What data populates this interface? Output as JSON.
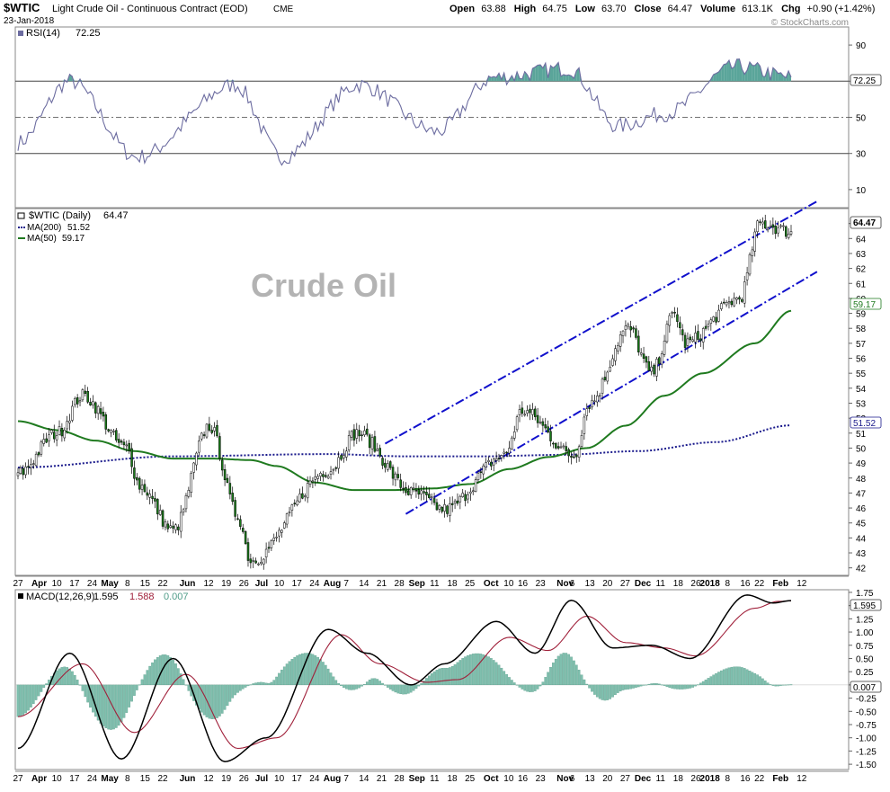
{
  "header": {
    "symbol": "$WTIC",
    "description": "Light Crude Oil - Continuous Contract (EOD)",
    "exchange": "CME",
    "date": "23-Jan-2018",
    "open_label": "Open",
    "open": "63.88",
    "high_label": "High",
    "high": "64.75",
    "low_label": "Low",
    "low": "63.70",
    "close_label": "Close",
    "close": "64.47",
    "volume_label": "Volume",
    "volume": "613.1K",
    "chg_label": "Chg",
    "chg": "+0.90 (+1.42%)",
    "watermark": "© StockCharts.com"
  },
  "colors": {
    "up_candle": "#ffffff",
    "down_candle": "#1a7a1a",
    "ma50": "#1f7a1f",
    "ma200": "#1a1a8c",
    "channel": "#1010cc",
    "rsi_line": "#6c6ca0",
    "rsi_fill": "#5aa59a",
    "macd_line": "#000000",
    "signal_line": "#a0203a",
    "hist_fill": "#7fbfae"
  },
  "chart_data": [
    {
      "type": "line",
      "panel": "rsi",
      "title": "RSI(14)",
      "last_value": "72.25",
      "ylim": [
        0,
        100
      ],
      "yticks": [
        "90",
        "70",
        "50",
        "30",
        "10"
      ],
      "reference_lines": [
        70,
        50,
        30
      ],
      "key_points": {
        "x": [
          0,
          20,
          46,
          84,
          102,
          132,
          162,
          184,
          213,
          232,
          250,
          278,
          299
        ],
        "y": [
          36,
          70,
          28,
          68,
          28,
          68,
          42,
          72,
          77,
          45,
          52,
          78,
          72.25
        ]
      }
    },
    {
      "type": "candlestick",
      "panel": "price",
      "title": "$WTIC (Daily)",
      "last_value": "64.47",
      "series": [
        {
          "name": "MA(200)",
          "value": "51.52"
        },
        {
          "name": "MA(50)",
          "value": "59.17"
        }
      ],
      "annotation": "Crude Oil",
      "ylim": [
        41.5,
        66
      ],
      "yticks": [
        "42",
        "43",
        "44",
        "45",
        "46",
        "47",
        "48",
        "49",
        "50",
        "51",
        "52",
        "53",
        "54",
        "55",
        "56",
        "57",
        "58",
        "59",
        "60",
        "61",
        "62",
        "63",
        "64",
        "65"
      ],
      "price_key_points": {
        "x": [
          0,
          15,
          25,
          42,
          47,
          60,
          74,
          85,
          90,
          120,
          131,
          153,
          165,
          188,
          195,
          215,
          221,
          236,
          245,
          254,
          258,
          279,
          287,
          299
        ],
        "y": [
          48.3,
          51,
          53.5,
          50,
          47.5,
          44.5,
          51.5,
          45.5,
          42.5,
          48.5,
          51,
          47,
          45.9,
          49.5,
          52.5,
          49.5,
          53,
          58,
          55,
          59,
          57,
          60,
          65,
          64.47
        ]
      },
      "ma50_key_points": {
        "x": [
          0,
          15,
          30,
          45,
          60,
          75,
          90,
          100,
          115,
          130,
          145,
          160,
          175,
          190,
          205,
          220,
          235,
          250,
          265,
          285,
          299
        ],
        "y": [
          51.8,
          51.2,
          50.5,
          49.8,
          49.3,
          49.3,
          49.2,
          48.8,
          47.7,
          47.2,
          47.2,
          47.3,
          47.6,
          48.6,
          49.4,
          50,
          51.5,
          53.5,
          55,
          57,
          59.17
        ]
      },
      "ma200_key_points": {
        "x": [
          0,
          60,
          120,
          150,
          180,
          210,
          240,
          270,
          299
        ],
        "y": [
          48.7,
          49.45,
          49.6,
          49.45,
          49.45,
          49.55,
          49.8,
          50.4,
          51.52
        ]
      },
      "channel_upper": {
        "x": [
          142,
          300
        ],
        "y": [
          50.3,
          66
        ]
      },
      "channel_lower": {
        "x": [
          150,
          300
        ],
        "y": [
          45.6,
          61.3
        ]
      }
    },
    {
      "type": "line",
      "panel": "macd",
      "title": "MACD(12,26,9)",
      "values": [
        "1.595",
        "1.588",
        "0.007"
      ],
      "series": [
        {
          "name": "MACD",
          "value": "1.595"
        },
        {
          "name": "Signal",
          "value": "1.588"
        },
        {
          "name": "Histogram",
          "value": "0.007"
        }
      ],
      "ylim": [
        -1.6,
        1.8
      ],
      "yticks": [
        "1.75",
        "1.50",
        "1.25",
        "1.00",
        "0.75",
        "0.50",
        "0.25",
        "0.00",
        "-0.25",
        "-0.50",
        "-0.75",
        "-1.00",
        "-1.25",
        "-1.50"
      ],
      "macd_key_points": {
        "x": [
          0,
          20,
          40,
          60,
          80,
          96,
          120,
          135,
          152,
          165,
          185,
          200,
          214,
          230,
          245,
          260,
          282,
          292,
          299
        ],
        "y": [
          -1.2,
          0.6,
          -1.4,
          0.5,
          -1.45,
          -1.0,
          1.05,
          0.6,
          0.0,
          0.4,
          1.2,
          0.6,
          1.6,
          0.7,
          0.75,
          0.5,
          1.7,
          1.55,
          1.595
        ]
      },
      "signal_key_points": {
        "x": [
          0,
          25,
          45,
          65,
          85,
          100,
          125,
          140,
          158,
          170,
          190,
          205,
          220,
          235,
          250,
          262,
          285,
          294,
          299
        ],
        "y": [
          -0.6,
          0.4,
          -0.9,
          0.2,
          -1.2,
          -1.0,
          0.95,
          0.4,
          0.05,
          0.1,
          0.9,
          0.65,
          1.3,
          0.8,
          0.7,
          0.55,
          1.45,
          1.58,
          1.588
        ]
      }
    }
  ],
  "x_axis": {
    "labels": [
      {
        "label": "27",
        "i": 0
      },
      {
        "label": "Apr",
        "i": 6,
        "bold": true
      },
      {
        "label": "10",
        "i": 11
      },
      {
        "label": "17",
        "i": 16
      },
      {
        "label": "24",
        "i": 21
      },
      {
        "label": "May",
        "i": 26,
        "bold": true
      },
      {
        "label": "8",
        "i": 31
      },
      {
        "label": "15",
        "i": 36
      },
      {
        "label": "22",
        "i": 41
      },
      {
        "label": "Jun",
        "i": 48,
        "bold": true
      },
      {
        "label": "12",
        "i": 54
      },
      {
        "label": "19",
        "i": 59
      },
      {
        "label": "26",
        "i": 64
      },
      {
        "label": "Jul",
        "i": 69,
        "bold": true
      },
      {
        "label": "10",
        "i": 74
      },
      {
        "label": "17",
        "i": 79
      },
      {
        "label": "24",
        "i": 84
      },
      {
        "label": "Aug",
        "i": 89,
        "bold": true
      },
      {
        "label": "7",
        "i": 93
      },
      {
        "label": "14",
        "i": 98
      },
      {
        "label": "21",
        "i": 103
      },
      {
        "label": "28",
        "i": 108
      },
      {
        "label": "Sep",
        "i": 113,
        "bold": true
      },
      {
        "label": "11",
        "i": 118
      },
      {
        "label": "18",
        "i": 123
      },
      {
        "label": "25",
        "i": 128
      },
      {
        "label": "Oct",
        "i": 134,
        "bold": true
      },
      {
        "label": "10",
        "i": 139
      },
      {
        "label": "16",
        "i": 143
      },
      {
        "label": "23",
        "i": 148
      },
      {
        "label": "Nov",
        "i": 155,
        "bold": true
      },
      {
        "label": "6",
        "i": 157
      },
      {
        "label": "13",
        "i": 162
      },
      {
        "label": "20",
        "i": 167
      },
      {
        "label": "27",
        "i": 172
      },
      {
        "label": "Dec",
        "i": 177,
        "bold": true
      },
      {
        "label": "11",
        "i": 182
      },
      {
        "label": "18",
        "i": 187
      },
      {
        "label": "26",
        "i": 192
      },
      {
        "label": "2018",
        "i": 196,
        "bold": true
      },
      {
        "label": "8",
        "i": 201
      },
      {
        "label": "16",
        "i": 206
      },
      {
        "label": "22",
        "i": 210
      },
      {
        "label": "Feb",
        "i": 216,
        "bold": true
      },
      {
        "label": "12",
        "i": 222
      }
    ]
  }
}
